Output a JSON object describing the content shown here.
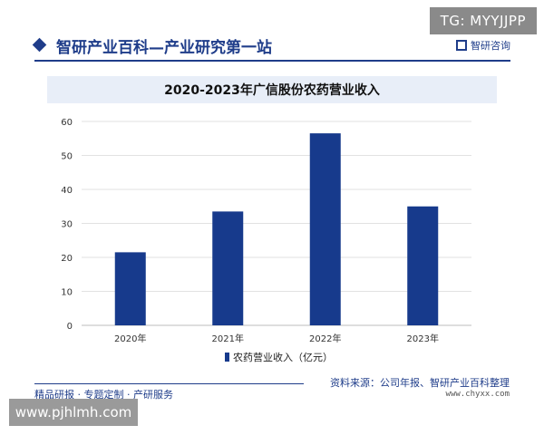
{
  "watermarks": {
    "top_right": "TG: MYYJJPP",
    "bottom_left": "www.pjhlmh.com"
  },
  "header": {
    "title": "智研产业百科—产业研究第一站",
    "brand": "智研咨询"
  },
  "footer": {
    "slogan": "精品研报 · 专题定制 · 产研服务",
    "source": "资料来源：公司年报、智研产业百科整理",
    "url": "www.chyxx.com"
  },
  "colors": {
    "brand": "#1f3d8a",
    "bar": "#173a8c",
    "title_band": "#e8eef8"
  },
  "chart_data": {
    "type": "bar",
    "title": "2020-2023年广信股份农药营业收入",
    "categories": [
      "2020年",
      "2021年",
      "2022年",
      "2023年"
    ],
    "series": [
      {
        "name": "农药营业收入（亿元）",
        "values": [
          21.5,
          33.5,
          56.5,
          35.0
        ]
      }
    ],
    "ylim": [
      0,
      60
    ],
    "yticks": [
      0,
      10,
      20,
      30,
      40,
      50,
      60
    ],
    "grid": true,
    "legend": "bottom-center"
  }
}
